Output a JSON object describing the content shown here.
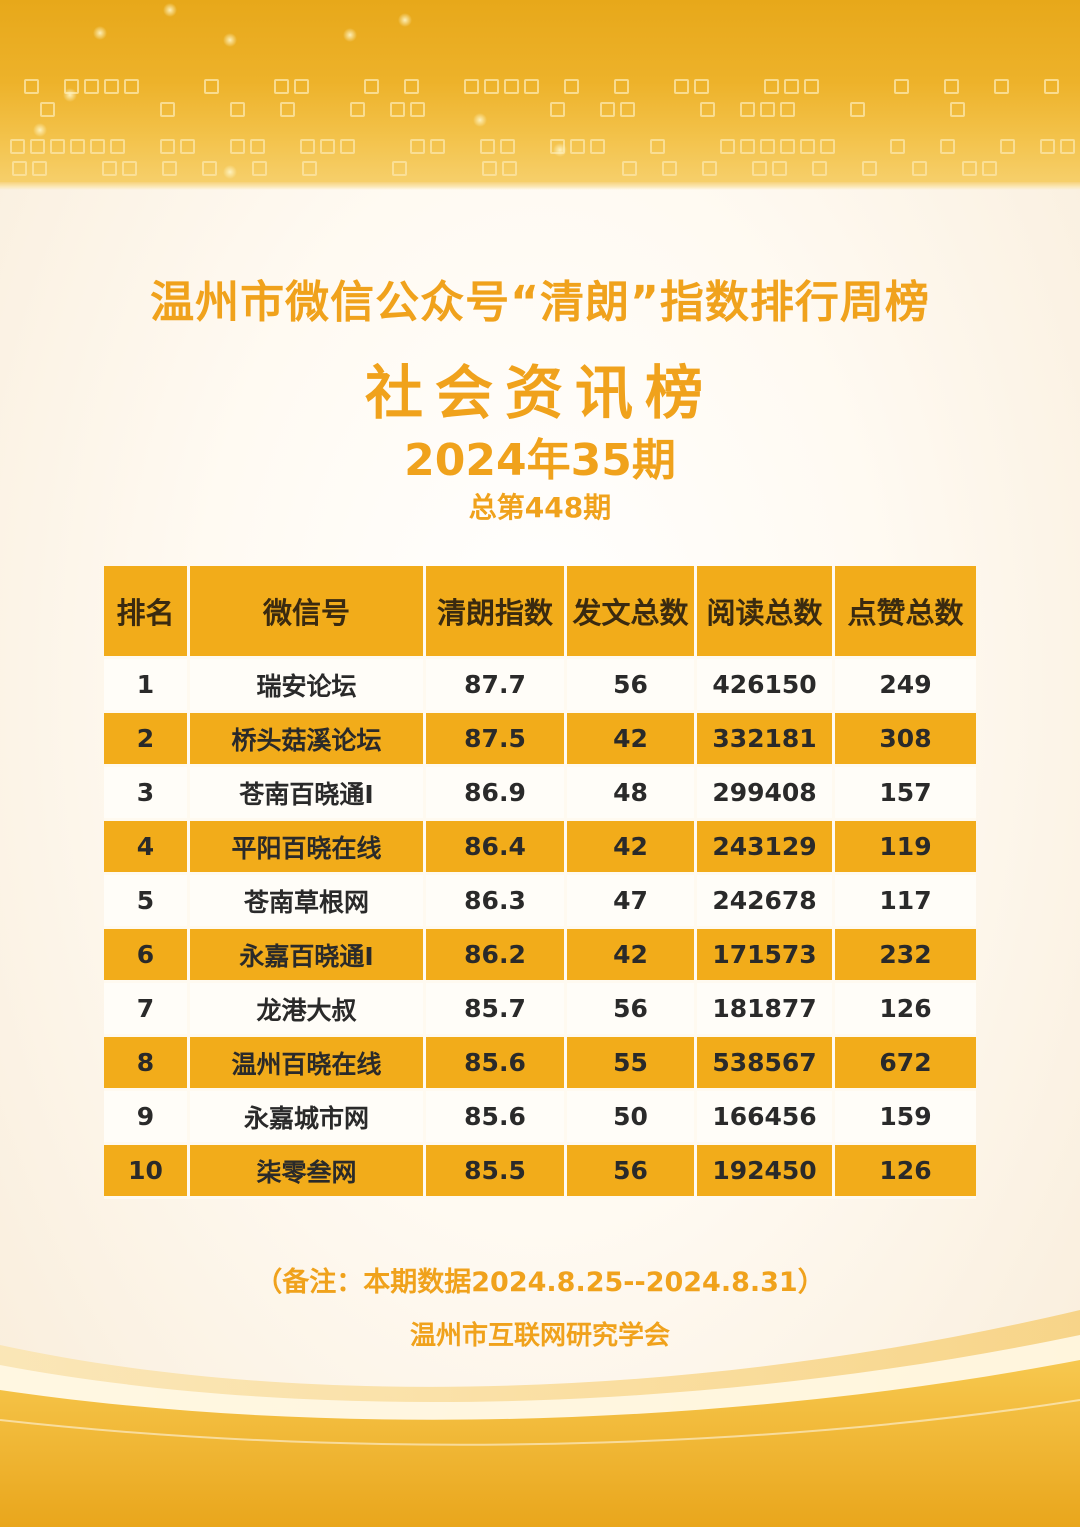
{
  "header": {
    "title": "温州市微信公众号“清朗”指数排行周榜",
    "subtitle": "社会资讯榜",
    "issue": "2024年35期",
    "total_issue": "总第448期"
  },
  "table": {
    "columns": [
      "排名",
      "微信号",
      "清朗指数",
      "发文总数",
      "阅读总数",
      "点赞总数"
    ],
    "rows": [
      {
        "rank": "1",
        "account": "瑞安论坛",
        "index": "87.7",
        "posts": "56",
        "reads": "426150",
        "likes": "249"
      },
      {
        "rank": "2",
        "account": "桥头菇溪论坛",
        "index": "87.5",
        "posts": "42",
        "reads": "332181",
        "likes": "308"
      },
      {
        "rank": "3",
        "account": "苍南百晓通I",
        "index": "86.9",
        "posts": "48",
        "reads": "299408",
        "likes": "157"
      },
      {
        "rank": "4",
        "account": "平阳百晓在线",
        "index": "86.4",
        "posts": "42",
        "reads": "243129",
        "likes": "119"
      },
      {
        "rank": "5",
        "account": "苍南草根网",
        "index": "86.3",
        "posts": "47",
        "reads": "242678",
        "likes": "117"
      },
      {
        "rank": "6",
        "account": "永嘉百晓通I",
        "index": "86.2",
        "posts": "42",
        "reads": "171573",
        "likes": "232"
      },
      {
        "rank": "7",
        "account": "龙港大叔",
        "index": "85.7",
        "posts": "56",
        "reads": "181877",
        "likes": "126"
      },
      {
        "rank": "8",
        "account": "温州百晓在线",
        "index": "85.6",
        "posts": "55",
        "reads": "538567",
        "likes": "672"
      },
      {
        "rank": "9",
        "account": "永嘉城市网",
        "index": "85.6",
        "posts": "50",
        "reads": "166456",
        "likes": "159"
      },
      {
        "rank": "10",
        "account": "柒零叁网",
        "index": "85.5",
        "posts": "56",
        "reads": "192450",
        "likes": "126"
      }
    ]
  },
  "footer": {
    "note": "（备注：本期数据2024.8.25--2024.8.31）",
    "organization": "温州市互联网研究学会"
  },
  "colors": {
    "accent": "#f0a21c",
    "header_bg": "#f2ac1a",
    "banner_gold": "#edb22a"
  }
}
